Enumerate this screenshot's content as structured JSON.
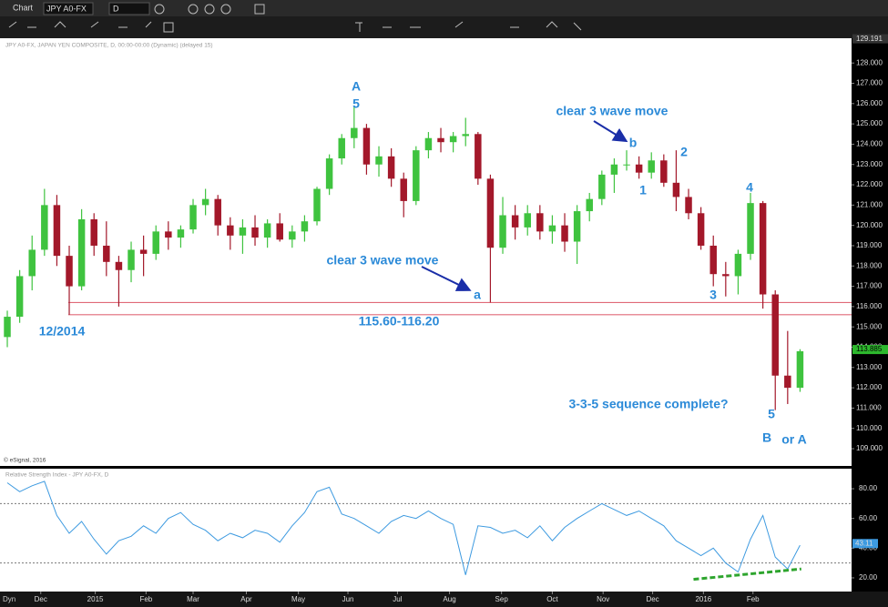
{
  "toolbar": {
    "title": "Chart",
    "symbol": "JPY A0-FX",
    "interval": "D",
    "status": "Dyn"
  },
  "chart_data": [
    {
      "type": "candlestick",
      "subtitle": "JPY A0-FX, JAPAN YEN COMPOSITE, D, 00:00-00:00 (Dynamic) (delayed 15)",
      "credit": "© eSignal, 2016",
      "up_color": "#3fc33f",
      "down_color": "#a3182a",
      "open": [
        114.5,
        115.5,
        117.5,
        118.8,
        121.0,
        118.5,
        117.0,
        120.3,
        119.0,
        118.2,
        117.8,
        118.8,
        118.6,
        119.7,
        119.4,
        119.8,
        121.0,
        121.3,
        120.0,
        119.5,
        119.9,
        119.4,
        120.1,
        119.3,
        119.7,
        120.2,
        121.8,
        123.3,
        124.3,
        124.8,
        123.0,
        123.4,
        122.3,
        121.2,
        123.7,
        124.3,
        124.1,
        124.4,
        124.5,
        122.3,
        118.9,
        120.5,
        119.9,
        120.6,
        119.7,
        120.0,
        119.2,
        120.7,
        121.3,
        122.5,
        123.0,
        123.0,
        122.6,
        123.2,
        122.1,
        121.4,
        120.6,
        119.0,
        117.6,
        117.5,
        118.6,
        121.1,
        116.6,
        112.6,
        112.0
      ],
      "high": [
        115.8,
        117.8,
        119.5,
        121.8,
        121.5,
        119.0,
        120.8,
        120.6,
        120.2,
        118.5,
        119.2,
        119.5,
        120.0,
        120.2,
        120.0,
        121.3,
        121.8,
        121.5,
        120.4,
        120.3,
        120.5,
        120.3,
        120.6,
        120.0,
        120.5,
        121.9,
        123.5,
        124.5,
        125.9,
        125.0,
        123.9,
        123.8,
        122.6,
        123.9,
        124.6,
        124.8,
        124.6,
        125.3,
        124.6,
        122.5,
        121.4,
        121.0,
        121.0,
        121.0,
        120.5,
        120.6,
        121.0,
        121.6,
        122.7,
        123.3,
        123.7,
        123.4,
        123.6,
        123.5,
        123.7,
        121.8,
        120.9,
        119.5,
        118.2,
        118.8,
        121.6,
        121.2,
        116.8,
        114.8,
        113.9
      ],
      "low": [
        114.0,
        115.2,
        116.8,
        118.5,
        118.0,
        115.6,
        116.8,
        118.5,
        117.5,
        116.0,
        117.2,
        117.5,
        118.3,
        118.8,
        118.9,
        119.6,
        120.5,
        119.5,
        118.8,
        118.6,
        119.0,
        118.9,
        119.2,
        118.9,
        119.2,
        120.0,
        121.5,
        123.0,
        123.8,
        122.5,
        122.4,
        121.9,
        120.4,
        121.0,
        123.3,
        123.6,
        123.6,
        123.9,
        122.0,
        116.2,
        118.6,
        119.3,
        119.5,
        119.3,
        119.1,
        118.7,
        118.1,
        120.2,
        121.0,
        121.6,
        122.7,
        122.3,
        122.3,
        121.9,
        120.7,
        120.3,
        118.8,
        117.0,
        116.5,
        116.6,
        118.3,
        115.9,
        110.9,
        111.2,
        111.8
      ],
      "close": [
        115.5,
        117.5,
        118.8,
        121.0,
        118.5,
        117.0,
        120.3,
        119.0,
        118.2,
        117.8,
        118.8,
        118.6,
        119.7,
        119.4,
        119.8,
        121.0,
        121.3,
        120.0,
        119.5,
        119.9,
        119.4,
        120.1,
        119.3,
        119.7,
        120.2,
        121.8,
        123.3,
        124.3,
        124.8,
        123.0,
        123.4,
        122.3,
        121.2,
        123.7,
        124.3,
        124.1,
        124.4,
        124.5,
        122.3,
        118.9,
        120.5,
        119.9,
        120.6,
        119.7,
        120.0,
        119.2,
        120.7,
        121.3,
        122.5,
        123.0,
        123.0,
        122.6,
        123.2,
        122.1,
        121.4,
        120.6,
        119.0,
        117.6,
        117.5,
        118.6,
        121.1,
        116.6,
        112.6,
        112.0,
        113.8
      ],
      "xlim": [
        -0.59,
        68.16
      ],
      "ylim": [
        108.15,
        129.22
      ],
      "yticks": [
        {
          "value": 109,
          "label": "109.000"
        },
        {
          "value": 110,
          "label": "110.000"
        },
        {
          "value": 111,
          "label": "111.000"
        },
        {
          "value": 112,
          "label": "112.000"
        },
        {
          "value": 113,
          "label": "113.000"
        },
        {
          "value": 114,
          "label": "114.000"
        },
        {
          "value": 115,
          "label": "115.000"
        },
        {
          "value": 116,
          "label": "116.000"
        },
        {
          "value": 117,
          "label": "117.000"
        },
        {
          "value": 118,
          "label": "118.000"
        },
        {
          "value": 119,
          "label": "119.000"
        },
        {
          "value": 120,
          "label": "120.000"
        },
        {
          "value": 121,
          "label": "121.000"
        },
        {
          "value": 122,
          "label": "122.000"
        },
        {
          "value": 123,
          "label": "123.000"
        },
        {
          "value": 124,
          "label": "124.000"
        },
        {
          "value": 125,
          "label": "125.000"
        },
        {
          "value": 126,
          "label": "126.000"
        },
        {
          "value": 127,
          "label": "127.000"
        },
        {
          "value": 128,
          "label": "128.000"
        }
      ],
      "axis_high": 129.191,
      "last_price": 113.885,
      "zone": [
        115.6,
        116.2
      ],
      "zone_color": "#e06a78",
      "annotations": [
        "A",
        "5",
        "clear 3 wave move",
        "b",
        "2",
        "1",
        "4",
        "3",
        "a",
        "clear 3 wave move",
        "12/2014",
        "115.60-116.20",
        "3-3-5 sequence complete?",
        "5",
        "B",
        "or A"
      ]
    },
    {
      "type": "line",
      "subtitle": "Relative Strength Index - JPY A0-FX, D",
      "color": "#3d9ae0",
      "values": [
        84,
        78,
        82,
        85,
        62,
        50,
        58,
        46,
        36,
        45,
        48,
        55,
        50,
        60,
        64,
        56,
        52,
        45,
        50,
        47,
        52,
        50,
        44,
        55,
        64,
        78,
        81,
        63,
        60,
        55,
        50,
        58,
        62,
        60,
        65,
        60,
        56,
        22,
        55,
        54,
        50,
        52,
        47,
        55,
        45,
        54,
        60,
        65,
        70,
        66,
        62,
        65,
        60,
        55,
        45,
        40,
        35,
        40,
        30,
        24,
        46,
        62,
        34,
        26,
        42
      ],
      "xlim": [
        -0.59,
        68.16
      ],
      "ylim": [
        10.8,
        93.5
      ],
      "yticks": [
        {
          "value": 20,
          "label": "20.00"
        },
        {
          "value": 40,
          "label": "40.00"
        },
        {
          "value": 60,
          "label": "60.00"
        },
        {
          "value": 80,
          "label": "80.00"
        }
      ],
      "levels": [
        30,
        70
      ],
      "last_value": 43.11,
      "trendline": {
        "x": [
          55.4,
          64.1
        ],
        "values": [
          19,
          26
        ],
        "color": "#2ea52e"
      },
      "xticks": [
        {
          "value": 2.7,
          "label": "Dec"
        },
        {
          "value": 7.1,
          "label": "2015"
        },
        {
          "value": 11.2,
          "label": "Feb"
        },
        {
          "value": 15,
          "label": "Mar"
        },
        {
          "value": 19.3,
          "label": "Apr"
        },
        {
          "value": 23.5,
          "label": "May"
        },
        {
          "value": 27.5,
          "label": "Jun"
        },
        {
          "value": 31.5,
          "label": "Jul"
        },
        {
          "value": 35.7,
          "label": "Aug"
        },
        {
          "value": 39.9,
          "label": "Sep"
        },
        {
          "value": 44,
          "label": "Oct"
        },
        {
          "value": 48.1,
          "label": "Nov"
        },
        {
          "value": 52.1,
          "label": "Dec"
        },
        {
          "value": 56.2,
          "label": "2016"
        },
        {
          "value": 60.2,
          "label": "Feb"
        }
      ]
    }
  ]
}
